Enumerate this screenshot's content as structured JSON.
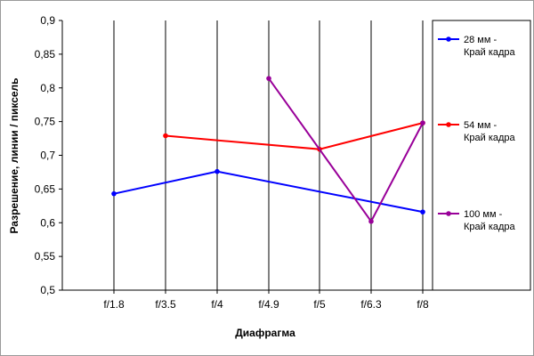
{
  "chart_data": {
    "type": "line",
    "title": "",
    "xlabel": "Диафрагма",
    "ylabel": "Разрешение, линии / пиксель",
    "categories": [
      "f/1.8",
      "f/3.5",
      "f/4",
      "f/4.9",
      "f/5",
      "f/6.3",
      "f/8"
    ],
    "y_ticks": [
      "0,5",
      "0,55",
      "0,6",
      "0,65",
      "0,7",
      "0,75",
      "0,8",
      "0,85",
      "0,9"
    ],
    "ylim": [
      0.5,
      0.9
    ],
    "grid": "vertical",
    "legend_position": "right",
    "series": [
      {
        "name": "28 мм - Край кадра",
        "color": "#0000ff",
        "values": [
          0.643,
          null,
          0.676,
          null,
          null,
          null,
          0.616
        ]
      },
      {
        "name": "54 мм - Край кадра",
        "color": "#ff0000",
        "values": [
          null,
          0.729,
          null,
          null,
          0.709,
          null,
          0.748
        ]
      },
      {
        "name": "100 мм - Край кадра",
        "color": "#990099",
        "values": [
          null,
          null,
          null,
          0.814,
          null,
          0.602,
          0.748
        ]
      }
    ]
  }
}
